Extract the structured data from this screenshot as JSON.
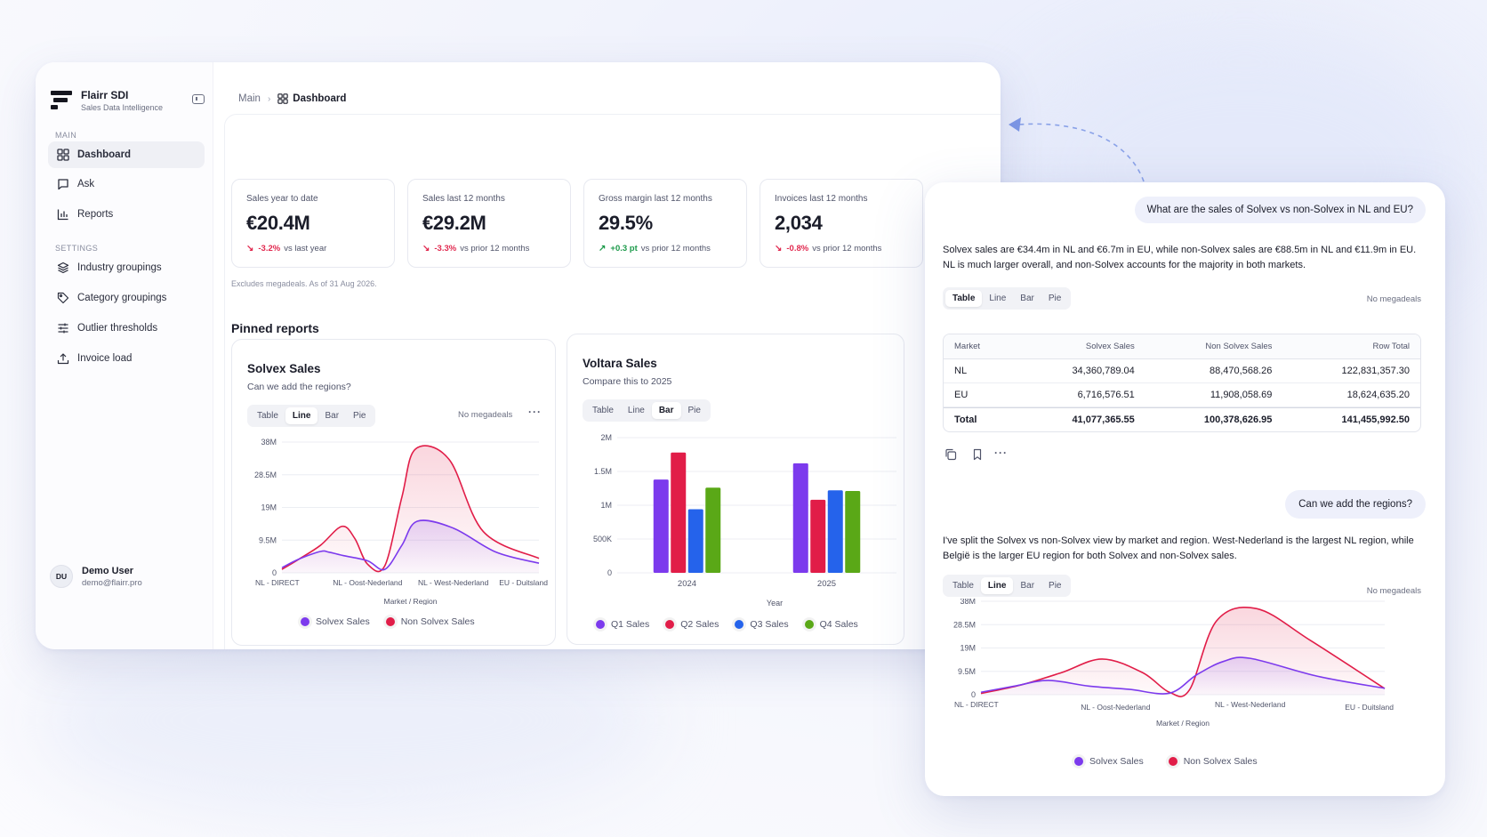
{
  "app": {
    "name": "Flairr SDI",
    "tagline": "Sales Data Intelligence"
  },
  "sidebar": {
    "main_label": "MAIN",
    "main_items": [
      {
        "label": "Dashboard",
        "icon": "grid-icon",
        "active": true
      },
      {
        "label": "Ask",
        "icon": "chat-icon",
        "active": false
      },
      {
        "label": "Reports",
        "icon": "bar-chart-icon",
        "active": false
      }
    ],
    "settings_label": "SETTINGS",
    "settings_items": [
      {
        "label": "Industry groupings",
        "icon": "layers-icon"
      },
      {
        "label": "Category groupings",
        "icon": "tag-icon"
      },
      {
        "label": "Outlier thresholds",
        "icon": "sliders-icon"
      },
      {
        "label": "Invoice load",
        "icon": "upload-icon"
      }
    ],
    "user": {
      "initials": "DU",
      "name": "Demo User",
      "email": "demo@flairr.pro"
    }
  },
  "breadcrumb": {
    "root": "Main",
    "current": "Dashboard"
  },
  "kpis": [
    {
      "label": "Sales year to date",
      "value": "€20.4M",
      "delta": "-3.2%",
      "direction": "down",
      "comparison": "vs last year"
    },
    {
      "label": "Sales last 12 months",
      "value": "€29.2M",
      "delta": "-3.3%",
      "direction": "down",
      "comparison": "vs prior 12 months"
    },
    {
      "label": "Gross margin last 12 months",
      "value": "29.5%",
      "delta": "+0.3 pt",
      "direction": "up",
      "comparison": "vs prior 12 months"
    },
    {
      "label": "Invoices last 12 months",
      "value": "2,034",
      "delta": "-0.8%",
      "direction": "down",
      "comparison": "vs prior 12 months"
    }
  ],
  "kpi_footnote": "Excludes megadeals. As of 31 Aug 2026.",
  "pinned_title": "Pinned reports",
  "tabs": [
    "Table",
    "Line",
    "Bar",
    "Pie"
  ],
  "no_megadeals": "No megadeals",
  "solvex_card": {
    "title": "Solvex Sales",
    "subtitle": "Can we add the regions?",
    "active_tab": "Line"
  },
  "voltara_card": {
    "title": "Voltara Sales",
    "subtitle": "Compare this to 2025",
    "active_tab": "Bar"
  },
  "colors": {
    "solvex": "#7c3aed",
    "non_solvex": "#e11d48",
    "q1": "#7c3aed",
    "q2": "#e11d48",
    "q3": "#2563eb",
    "q4": "#5aa817"
  },
  "chart_data": [
    {
      "type": "line",
      "id": "solvex-line",
      "categories": [
        "NL - DIRECT",
        "NL - Oost-Nederland",
        "NL - West-Nederland",
        "EU - Duitsland"
      ],
      "y_ticks": [
        "38M",
        "28.5M",
        "19M",
        "9.5M",
        "0"
      ],
      "ylim": [
        0,
        38
      ],
      "xlabel": "Market / Region",
      "series": [
        {
          "name": "Solvex Sales",
          "color": "#7c3aed",
          "x": [
            0,
            0.2,
            0.45,
            0.55,
            0.72,
            1.0,
            1.2,
            1.4,
            1.58,
            2.0,
            2.5,
            3.0
          ],
          "values": [
            1.5,
            4,
            6.2,
            6,
            5,
            3.5,
            1,
            8,
            15,
            13,
            6,
            2.8
          ]
        },
        {
          "name": "Non Solvex Sales",
          "color": "#e11d48",
          "x": [
            0,
            0.2,
            0.45,
            0.7,
            0.85,
            1.0,
            1.2,
            1.4,
            1.56,
            1.95,
            2.35,
            3.0
          ],
          "values": [
            1,
            4,
            8,
            13.5,
            10,
            2.5,
            2,
            22,
            36,
            33,
            12,
            4.2
          ]
        }
      ]
    },
    {
      "type": "bar",
      "id": "voltara-bar",
      "categories": [
        "2024",
        "2025"
      ],
      "y_ticks": [
        "2M",
        "1.5M",
        "1M",
        "500K",
        "0"
      ],
      "ylim": [
        0,
        2000000
      ],
      "xlabel": "Year",
      "series": [
        {
          "name": "Q1 Sales",
          "color": "#7c3aed",
          "values": [
            1380000,
            1620000
          ]
        },
        {
          "name": "Q2 Sales",
          "color": "#e11d48",
          "values": [
            1780000,
            1080000
          ]
        },
        {
          "name": "Q3 Sales",
          "color": "#2563eb",
          "values": [
            940000,
            1220000
          ]
        },
        {
          "name": "Q4 Sales",
          "color": "#5aa817",
          "values": [
            1260000,
            1210000
          ]
        }
      ]
    },
    {
      "type": "line",
      "id": "chat-line",
      "categories": [
        "NL - DIRECT",
        "NL - Oost-Nederland",
        "NL - West-Nederland",
        "EU - Duitsland"
      ],
      "y_ticks": [
        "38M",
        "28.5M",
        "19M",
        "9.5M",
        "0"
      ],
      "ylim": [
        0,
        38
      ],
      "xlabel": "Market / Region",
      "series": [
        {
          "name": "Solvex Sales",
          "color": "#7c3aed",
          "x": [
            0,
            0.25,
            0.5,
            0.8,
            1.1,
            1.4,
            1.6,
            1.8,
            2.0,
            2.5,
            3.0
          ],
          "values": [
            1,
            3.5,
            5.8,
            3.5,
            2.2,
            0.6,
            8,
            13.5,
            14.8,
            7.5,
            2.6
          ]
        },
        {
          "name": "Non Solvex Sales",
          "color": "#e11d48",
          "x": [
            0,
            0.3,
            0.6,
            0.9,
            1.2,
            1.4,
            1.55,
            1.75,
            2.05,
            2.45,
            3.0
          ],
          "values": [
            0.5,
            4,
            9,
            14.5,
            9,
            1,
            2,
            30,
            35,
            22,
            2.5
          ]
        }
      ]
    }
  ],
  "chat": {
    "question1": "What are the sales of Solvex vs non-Solvex in NL and EU?",
    "answer1": "Solvex sales are €34.4m in NL and €6.7m in EU, while non-Solvex sales are €88.5m in NL and €11.9m in EU. NL is much larger overall, and non-Solvex accounts for the majority in both markets.",
    "table_active_tab": "Table",
    "table": {
      "headers": [
        "Market",
        "Solvex Sales",
        "Non Solvex Sales",
        "Row Total"
      ],
      "rows": [
        [
          "NL",
          "34,360,789.04",
          "88,470,568.26",
          "122,831,357.30"
        ],
        [
          "EU",
          "6,716,576.51",
          "11,908,058.69",
          "18,624,635.20"
        ]
      ],
      "total": [
        "Total",
        "41,077,365.55",
        "100,378,626.95",
        "141,455,992.50"
      ]
    },
    "question2": "Can we add the regions?",
    "answer2": "I've split the Solvex vs non-Solvex view by market and region. West-Nederland is the largest NL region, while België is the larger EU region for both Solvex and non-Solvex sales.",
    "chart_active_tab": "Line"
  }
}
